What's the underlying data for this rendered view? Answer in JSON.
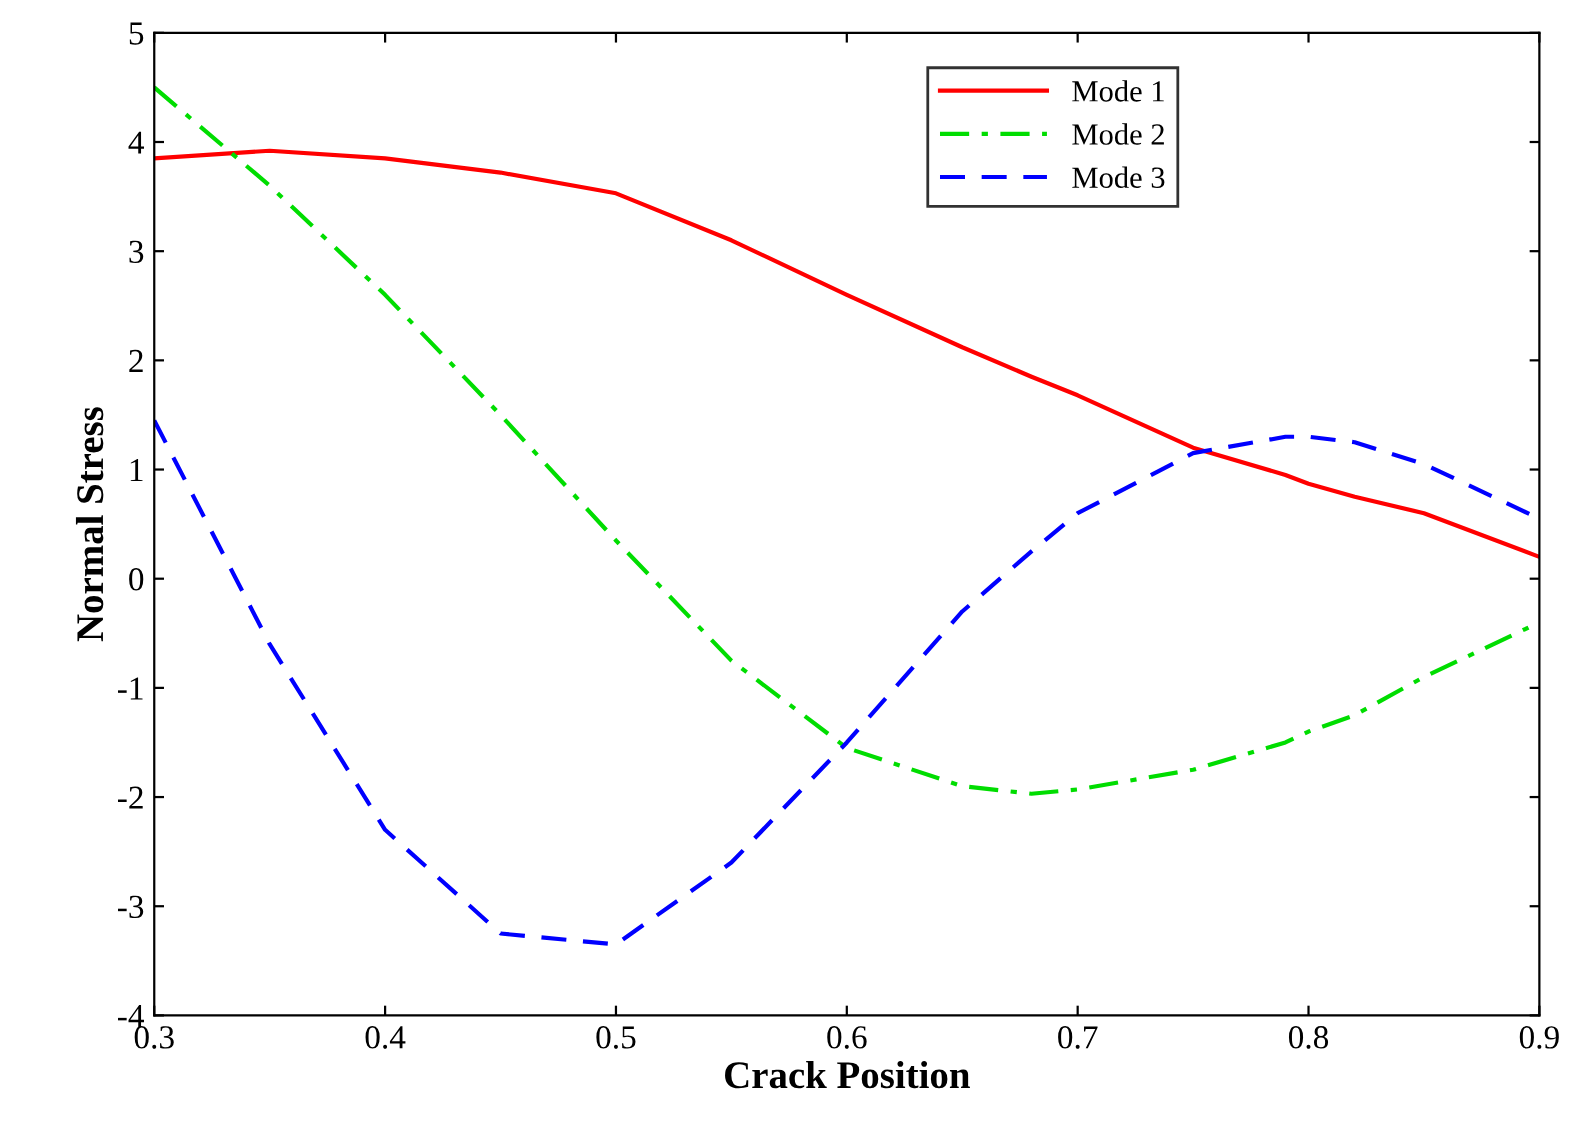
{
  "chart_data": {
    "type": "line",
    "xlabel": "Crack Position",
    "ylabel": "Normal Stress",
    "x": [
      0.3,
      0.35,
      0.4,
      0.45,
      0.5,
      0.55,
      0.6,
      0.65,
      0.68,
      0.7,
      0.75,
      0.79,
      0.8,
      0.82,
      0.85,
      0.9
    ],
    "series": [
      {
        "name": "Mode 1",
        "color": "#ff0000",
        "line_style": "solid",
        "values": [
          3.85,
          3.92,
          3.85,
          3.72,
          3.53,
          3.1,
          2.6,
          2.12,
          1.85,
          1.68,
          1.2,
          0.95,
          0.87,
          0.75,
          0.6,
          0.2
        ]
      },
      {
        "name": "Mode 2",
        "color": "#00dd00",
        "line_style": "dashdot",
        "values": [
          4.5,
          3.6,
          2.6,
          1.5,
          0.35,
          -0.75,
          -1.55,
          -1.9,
          -1.97,
          -1.93,
          -1.75,
          -1.5,
          -1.4,
          -1.25,
          -0.9,
          -0.4
        ]
      },
      {
        "name": "Mode 3",
        "color": "#0000ff",
        "line_style": "dashed",
        "values": [
          1.45,
          -0.6,
          -2.3,
          -3.25,
          -3.35,
          -2.6,
          -1.5,
          -0.3,
          0.25,
          0.6,
          1.15,
          1.3,
          1.3,
          1.25,
          1.05,
          0.55
        ]
      }
    ],
    "xlim": [
      0.3,
      0.9
    ],
    "xticks": [
      0.3,
      0.4,
      0.5,
      0.6,
      0.7,
      0.8,
      0.9
    ],
    "ylim": [
      -4,
      5
    ],
    "yticks": [
      -4,
      -3,
      -2,
      -1,
      0,
      1,
      2,
      3,
      4,
      5
    ],
    "grid": false,
    "legend": "top right"
  }
}
